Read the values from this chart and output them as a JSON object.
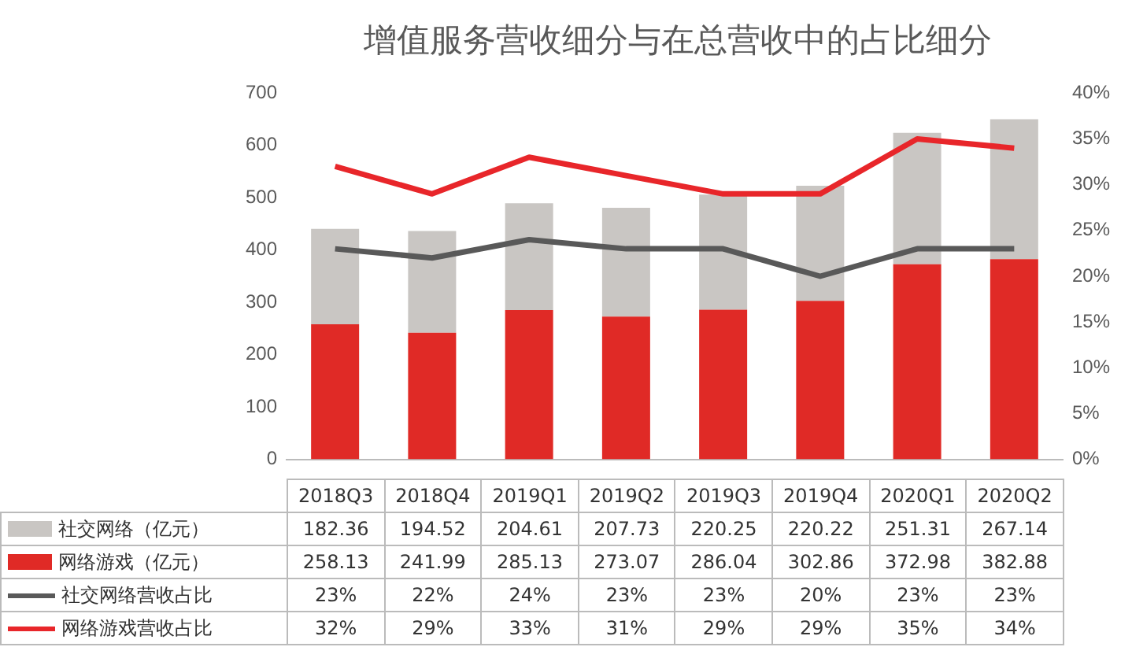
{
  "chart_data": {
    "type": "bar",
    "title": "增值服务营收细分与在总营收中的占比细分",
    "categories": [
      "2018Q3",
      "2018Q4",
      "2019Q1",
      "2019Q2",
      "2019Q3",
      "2019Q4",
      "2020Q1",
      "2020Q2"
    ],
    "stacked": true,
    "ylim": [
      0,
      700
    ],
    "yticks": [
      0,
      100,
      200,
      300,
      400,
      500,
      600,
      700
    ],
    "y2lim": [
      0,
      40
    ],
    "y2ticks": [
      {
        "value": 0,
        "label": "0%"
      },
      {
        "value": 5,
        "label": "5%"
      },
      {
        "value": 10,
        "label": "10%"
      },
      {
        "value": 15,
        "label": "15%"
      },
      {
        "value": 20,
        "label": "20%"
      },
      {
        "value": 25,
        "label": "25%"
      },
      {
        "value": 30,
        "label": "30%"
      },
      {
        "value": 35,
        "label": "35%"
      },
      {
        "value": 40,
        "label": "40%"
      }
    ],
    "series": [
      {
        "name": "网络游戏（亿元）",
        "color": "#e02a26",
        "values": [
          258.13,
          241.99,
          285.13,
          273.07,
          286.04,
          302.86,
          372.98,
          382.88
        ]
      },
      {
        "name": "社交网络（亿元）",
        "color": "#c9c6c3",
        "values": [
          182.36,
          194.52,
          204.61,
          207.73,
          220.25,
          220.22,
          251.31,
          267.14
        ]
      },
      {
        "name": "社交网络营收占比",
        "type": "line",
        "axis": "y2",
        "color": "#595959",
        "values": [
          23,
          22,
          24,
          23,
          23,
          20,
          23,
          23
        ],
        "value_labels": [
          "23%",
          "22%",
          "24%",
          "23%",
          "23%",
          "20%",
          "23%",
          "23%"
        ]
      },
      {
        "name": "网络游戏营收占比",
        "type": "line",
        "axis": "y2",
        "color": "#e8262a",
        "values": [
          32,
          29,
          33,
          31,
          29,
          29,
          35,
          34
        ],
        "value_labels": [
          "32%",
          "29%",
          "33%",
          "31%",
          "29%",
          "29%",
          "35%",
          "34%"
        ]
      }
    ],
    "data_labels": true,
    "legend": "bottom",
    "grid": false,
    "marker": "none",
    "line_style": "solid"
  }
}
